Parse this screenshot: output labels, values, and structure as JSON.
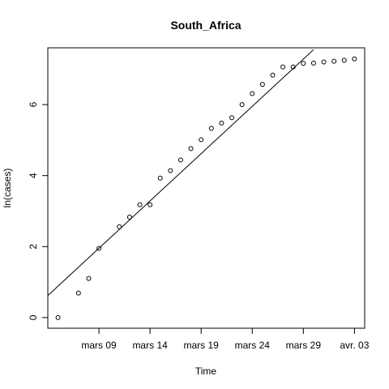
{
  "chart_data": {
    "type": "scatter",
    "title": "South_Africa",
    "xlabel": "Time",
    "ylabel": "ln(cases)",
    "x_ticks": [
      {
        "date": "2020-03-09",
        "label": "mars 09"
      },
      {
        "date": "2020-03-14",
        "label": "mars 14"
      },
      {
        "date": "2020-03-19",
        "label": "mars 19"
      },
      {
        "date": "2020-03-24",
        "label": "mars 24"
      },
      {
        "date": "2020-03-29",
        "label": "mars 29"
      },
      {
        "date": "2020-04-03",
        "label": "avr. 03"
      }
    ],
    "y_ticks": [
      0,
      2,
      4,
      6
    ],
    "xlim": [
      "2020-03-04",
      "2020-04-04"
    ],
    "ylim": [
      -0.3,
      7.6
    ],
    "grid": false,
    "legend": "none",
    "points": [
      {
        "x": "2020-03-05",
        "y": 0.0
      },
      {
        "x": "2020-03-07",
        "y": 0.69
      },
      {
        "x": "2020-03-08",
        "y": 1.1
      },
      {
        "x": "2020-03-09",
        "y": 1.95
      },
      {
        "x": "2020-03-11",
        "y": 2.56
      },
      {
        "x": "2020-03-12",
        "y": 2.83
      },
      {
        "x": "2020-03-13",
        "y": 3.18
      },
      {
        "x": "2020-03-14",
        "y": 3.18
      },
      {
        "x": "2020-03-15",
        "y": 3.93
      },
      {
        "x": "2020-03-16",
        "y": 4.14
      },
      {
        "x": "2020-03-17",
        "y": 4.44
      },
      {
        "x": "2020-03-18",
        "y": 4.76
      },
      {
        "x": "2020-03-19",
        "y": 5.01
      },
      {
        "x": "2020-03-20",
        "y": 5.33
      },
      {
        "x": "2020-03-21",
        "y": 5.48
      },
      {
        "x": "2020-03-22",
        "y": 5.63
      },
      {
        "x": "2020-03-23",
        "y": 6.0
      },
      {
        "x": "2020-03-24",
        "y": 6.31
      },
      {
        "x": "2020-03-25",
        "y": 6.57
      },
      {
        "x": "2020-03-26",
        "y": 6.83
      },
      {
        "x": "2020-03-27",
        "y": 7.06
      },
      {
        "x": "2020-03-28",
        "y": 7.06
      },
      {
        "x": "2020-03-29",
        "y": 7.16
      },
      {
        "x": "2020-03-30",
        "y": 7.17
      },
      {
        "x": "2020-03-31",
        "y": 7.2
      },
      {
        "x": "2020-04-01",
        "y": 7.22
      },
      {
        "x": "2020-04-02",
        "y": 7.25
      },
      {
        "x": "2020-04-03",
        "y": 7.29
      }
    ],
    "fit_line": {
      "start": {
        "x": "2020-03-04",
        "y": 0.62
      },
      "end": {
        "x": "2020-03-30",
        "y": 7.55
      }
    }
  }
}
